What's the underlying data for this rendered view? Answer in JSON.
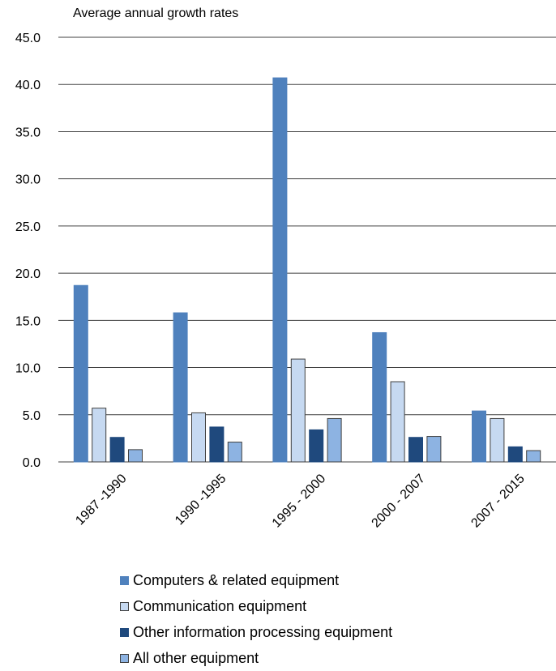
{
  "chart_data": {
    "type": "bar",
    "title": "Average annual growth rates",
    "categories": [
      "1987 -1990",
      "1990 -1995",
      "1995 - 2000",
      "2000 - 2007",
      "2007 - 2015"
    ],
    "series": [
      {
        "name": "Computers & related equipment",
        "values": [
          18.7,
          15.8,
          40.7,
          13.7,
          5.4
        ],
        "color": "#4f81bd",
        "stroke": "#4f81bd"
      },
      {
        "name": "Communication equipment",
        "values": [
          5.7,
          5.2,
          10.9,
          8.5,
          4.6
        ],
        "color": "#c6d9f1",
        "stroke": "#404040"
      },
      {
        "name": "Other information processing equipment",
        "values": [
          2.6,
          3.7,
          3.4,
          2.6,
          1.6
        ],
        "color": "#1f497d",
        "stroke": "#1f497d"
      },
      {
        "name": "All other equipment",
        "values": [
          1.3,
          2.1,
          4.6,
          2.7,
          1.2
        ],
        "color": "#8db3e2",
        "stroke": "#404040"
      }
    ],
    "yticks": [
      "0.0",
      "5.0",
      "10.0",
      "15.0",
      "20.0",
      "25.0",
      "30.0",
      "35.0",
      "40.0",
      "45.0"
    ],
    "ylim": [
      0,
      45
    ],
    "grid": true,
    "legend_position": "bottom"
  }
}
